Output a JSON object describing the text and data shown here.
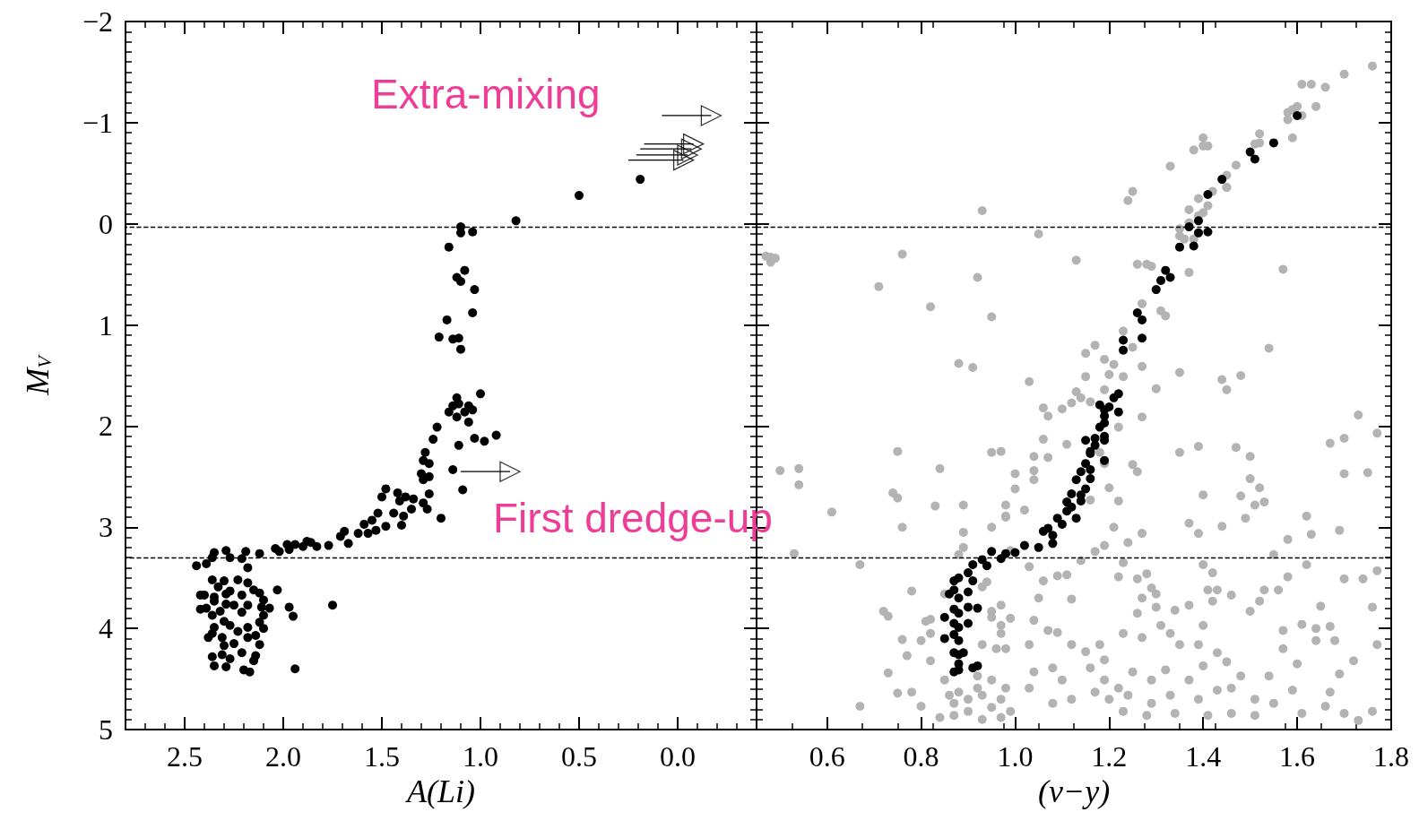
{
  "chart_data": [
    {
      "type": "scatter",
      "xlabel": "A(Li)",
      "ylabel": "M$_{V}$",
      "xlim": [
        2.8,
        -0.4
      ],
      "xticks": [
        {
          "value": 2.5,
          "label": "2.5"
        },
        {
          "value": 2,
          "label": "2.0"
        },
        {
          "value": 1.5,
          "label": "1.5"
        },
        {
          "value": 1,
          "label": "1.0"
        },
        {
          "value": 0.5,
          "label": "0.5"
        },
        {
          "value": 0,
          "label": "0.0"
        }
      ],
      "ylim": [
        5,
        -2
      ],
      "yticks": [
        {
          "value": -2,
          "label": "−2"
        },
        {
          "value": -1,
          "label": "−1"
        },
        0,
        1,
        2,
        3,
        4,
        5
      ],
      "marker": "circle",
      "ref_lines": [
        {
          "axis": "y",
          "value": 0.03,
          "line_style": "dashed",
          "color": "#000000"
        },
        {
          "axis": "y",
          "value": 3.3,
          "line_style": "dashed",
          "color": "#000000"
        }
      ],
      "annotations": [
        "Extra-mixing",
        "First dredge-up"
      ],
      "series": [
        {
          "color": "#000000",
          "x": [
            0.82,
            0.5,
            0.19,
            1.1,
            1.1,
            1.04,
            1.16,
            1.08,
            1.12,
            1.1,
            1.03,
            1.04,
            1.17,
            1.21,
            1.14,
            1.11,
            1.1,
            1.0,
            1.12,
            1.14,
            1.11,
            1.06,
            1.04,
            1.08,
            1.16,
            1.12,
            1.06,
            1.22,
            1.03,
            0.98,
            0.92,
            1.24,
            1.11,
            1.28,
            1.29,
            1.26,
            1.14,
            1.3,
            1.29,
            1.26,
            1.09,
            1.48,
            1.5,
            1.42,
            1.38,
            1.34,
            1.41,
            1.26,
            1.29,
            1.27,
            1.35,
            1.2,
            1.52,
            1.44,
            1.39,
            1.55,
            1.48,
            1.4,
            1.53,
            1.59,
            1.62,
            1.57,
            1.71,
            1.69,
            1.67,
            1.77,
            1.83,
            1.88,
            1.86,
            1.9,
            1.94,
            1.98,
            1.97,
            2.02,
            2.04,
            2.12,
            2.19,
            2.29,
            2.35,
            2.44,
            2.39,
            2.36,
            2.27,
            2.21,
            2.18,
            2.36,
            2.3,
            2.23,
            2.33,
            2.18,
            2.27,
            2.15,
            2.12,
            2.42,
            2.4,
            2.35,
            2.29,
            2.21,
            2.03,
            2.1,
            2.35,
            2.29,
            2.42,
            2.39,
            2.32,
            2.25,
            2.18,
            2.11,
            2.07,
            1.97,
            1.75,
            2.36,
            2.21,
            2.1,
            1.95,
            2.3,
            2.12,
            2.35,
            2.27,
            2.18,
            2.1,
            2.36,
            2.23,
            2.31,
            2.38,
            2.18,
            2.14,
            2.12,
            2.3,
            2.25,
            2.21,
            2.31,
            2.36,
            2.27,
            2.14,
            2.15,
            2.35,
            2.29,
            2.2,
            2.17,
            1.94
          ],
          "values": [
            -0.03,
            -0.28,
            -0.44,
            0.03,
            0.09,
            0.08,
            0.23,
            0.46,
            0.53,
            0.57,
            0.65,
            0.88,
            0.95,
            1.12,
            1.14,
            1.13,
            1.24,
            1.68,
            1.72,
            1.8,
            1.78,
            1.8,
            1.84,
            1.86,
            1.86,
            1.91,
            1.96,
            2.01,
            2.12,
            2.15,
            2.09,
            2.13,
            2.19,
            2.26,
            2.34,
            2.37,
            2.43,
            2.47,
            2.53,
            2.5,
            2.63,
            2.62,
            2.7,
            2.66,
            2.7,
            2.72,
            2.74,
            2.67,
            2.76,
            2.82,
            2.82,
            2.91,
            2.86,
            2.86,
            2.89,
            2.93,
            2.99,
            2.98,
            3.03,
            2.97,
            3.06,
            3.06,
            3.09,
            3.04,
            3.16,
            3.18,
            3.19,
            3.14,
            3.15,
            3.19,
            3.17,
            3.17,
            3.22,
            3.24,
            3.21,
            3.26,
            3.24,
            3.23,
            3.25,
            3.38,
            3.36,
            3.3,
            3.3,
            3.31,
            3.4,
            3.52,
            3.53,
            3.52,
            3.59,
            3.55,
            3.63,
            3.62,
            3.65,
            3.67,
            3.67,
            3.69,
            3.66,
            3.67,
            3.62,
            3.72,
            3.73,
            3.76,
            3.81,
            3.8,
            3.83,
            3.77,
            3.77,
            3.79,
            3.8,
            3.79,
            3.77,
            3.87,
            3.84,
            3.87,
            3.88,
            3.93,
            3.94,
            3.99,
            3.97,
            3.99,
            4.0,
            4.05,
            4.03,
            4.09,
            4.09,
            4.09,
            4.07,
            4.16,
            4.17,
            4.15,
            4.24,
            4.26,
            4.28,
            4.3,
            4.27,
            4.32,
            4.37,
            4.38,
            4.41,
            4.43,
            4.4
          ]
        },
        {
          "color": "#000000",
          "marker": "triangle",
          "x": [
            -0.17,
            -0.08,
            -0.07,
            -0.05,
            -0.03,
            0.85
          ],
          "values": [
            -1.07,
            -0.79,
            -0.74,
            -0.68,
            -0.63,
            2.45
          ],
          "xerrors": [
            [
              -0.17,
              0.08
            ],
            [
              -0.08,
              0.17
            ],
            [
              -0.07,
              0.19
            ],
            [
              -0.05,
              0.21
            ],
            [
              -0.03,
              0.25
            ],
            [
              0.85,
              1.1
            ]
          ]
        }
      ]
    },
    {
      "type": "scatter",
      "xlabel": "(v−y)",
      "xlim": [
        0.45,
        1.8
      ],
      "xticks": [
        0.6,
        0.8,
        {
          "value": 1,
          "label": "1.0"
        },
        1.2,
        1.4,
        1.6,
        1.8
      ],
      "ylim": [
        5,
        -2
      ],
      "yticks": [
        -2,
        -1,
        0,
        1,
        2,
        3,
        4,
        5
      ],
      "tick_labels": "x",
      "marker": "circle",
      "ref_lines": [
        {
          "axis": "y",
          "value": 0.03,
          "line_style": "dashed",
          "color": "#000000"
        },
        {
          "axis": "y",
          "value": 3.3,
          "line_style": "dashed",
          "color": "#000000"
        }
      ],
      "series": [
        {
          "color": "#b3b3b3",
          "x": [
            1.76,
            1.7,
            1.61,
            1.63,
            1.66,
            1.58,
            1.59,
            1.6,
            1.64,
            1.61,
            1.58,
            1.59,
            1.52,
            1.52,
            1.51,
            1.4,
            1.4,
            1.41,
            1.38,
            1.33,
            1.47,
            1.45,
            1.45,
            1.45,
            1.42,
            1.25,
            1.24,
            1.39,
            1.37,
            1.41,
            1.4,
            1.39,
            1.37,
            1.35,
            1.35,
            1.36,
            1.38,
            0.93,
            1.05,
            0.76,
            0.47,
            0.48,
            0.48,
            0.49,
            1.13,
            1.57,
            1.26,
            1.28,
            1.29,
            1.37,
            0.92,
            0.71,
            0.82,
            0.95,
            1.27,
            1.31,
            1.32,
            1.23,
            1.25,
            1.17,
            1.15,
            1.19,
            1.21,
            1.27,
            0.88,
            0.91,
            1.54,
            1.35,
            1.15,
            1.2,
            1.23,
            1.03,
            1.44,
            1.48,
            1.45,
            1.3,
            1.19,
            1.13,
            1.14,
            1.12,
            1.06,
            1.07,
            1.1,
            1.16,
            1.27,
            1.22,
            1.06,
            1.11,
            1.18,
            1.19,
            1.73,
            1.77,
            1.67,
            1.7,
            1.39,
            1.47,
            1.35,
            1.5,
            0.75,
            0.95,
            0.97,
            1.25,
            1.26,
            0.5,
            0.54,
            0.54,
            0.84,
            1.0,
            1.04,
            1.04,
            1.07,
            1.04,
            1.0,
            1.5,
            1.52,
            1.7,
            1.75,
            1.2,
            0.74,
            0.75,
            0.61,
            0.83,
            0.89,
            0.98,
            0.98,
            1.02,
            1.4,
            1.48,
            1.51,
            1.53,
            1.49,
            1.62,
            1.22,
            1.16,
            0.53,
            0.67,
            0.76,
            0.78,
            0.72,
            0.73,
            0.76,
            0.77,
            0.73,
            0.75,
            0.78,
            0.67,
            0.8,
            0.81,
            0.85,
            0.86,
            0.87,
            0.88,
            0.9,
            0.92,
            0.93,
            0.95,
            0.97,
            0.98,
            0.99,
            0.9,
            0.87,
            0.84,
            0.93,
            0.97,
            0.92,
            0.95,
            0.93,
            0.96,
            0.97,
            0.98,
            0.95,
            0.97,
            0.97,
            0.99,
            0.95,
            0.93,
            0.94,
            0.89,
            0.88,
            0.85,
            0.82,
            0.82,
            0.8,
            0.82,
            0.89,
            0.95,
            0.98,
            0.99,
            1.03,
            1.06,
            1.05,
            1.04,
            1.03,
            1.04,
            1.03,
            1.07,
            1.09,
            1.11,
            1.12,
            1.14,
            1.17,
            1.19,
            1.22,
            1.23,
            1.24,
            1.26,
            1.28,
            1.29,
            1.3,
            1.27,
            1.34,
            1.3,
            1.31,
            1.26,
            1.23,
            1.27,
            1.33,
            1.35,
            1.39,
            1.37,
            1.4,
            1.41,
            1.42,
            1.43,
            1.4,
            1.42,
            1.46,
            1.5,
            1.52,
            1.53,
            1.56,
            1.55,
            1.58,
            1.62,
            1.64,
            1.61,
            1.57,
            1.67,
            1.64,
            1.68,
            1.7,
            1.74,
            1.76,
            1.77,
            1.72,
            1.69,
            1.65,
            1.6,
            1.57,
            1.54,
            1.48,
            1.45,
            1.43,
            1.4,
            1.37,
            1.32,
            1.29,
            1.25,
            1.22,
            1.19,
            1.16,
            1.15,
            1.18,
            1.19,
            1.17,
            1.2,
            1.24,
            1.29,
            1.33,
            1.39,
            1.43,
            1.46,
            1.51,
            1.55,
            1.59,
            1.61,
            1.66,
            1.7,
            1.73,
            1.67,
            1.51,
            1.46,
            1.41,
            1.34,
            1.28,
            1.23,
            1.12,
            1.08,
            1.1,
            1.08,
            1.12,
            1.09,
            1.76,
            1.21,
            1.27,
            1.37,
            1.39,
            1.44,
            1.58,
            1.63,
            1.69,
            1.77
          ],
          "values": [
            -1.56,
            -1.48,
            -1.38,
            -1.38,
            -1.35,
            -1.1,
            -1.13,
            -1.16,
            -1.16,
            -1.07,
            -1.03,
            -0.85,
            -0.89,
            -0.8,
            -0.79,
            -0.85,
            -0.77,
            -0.77,
            -0.73,
            -0.57,
            -0.58,
            -0.48,
            -0.36,
            -0.36,
            -0.32,
            -0.32,
            -0.23,
            -0.25,
            -0.14,
            -0.18,
            -0.11,
            -0.08,
            -0.01,
            0.05,
            0.12,
            0.15,
            0.15,
            -0.13,
            0.1,
            0.3,
            0.32,
            0.38,
            0.33,
            0.34,
            0.36,
            0.45,
            0.4,
            0.4,
            0.42,
            0.48,
            0.53,
            0.62,
            0.82,
            0.92,
            0.79,
            0.86,
            0.91,
            1.06,
            1.22,
            1.2,
            1.28,
            1.34,
            1.39,
            1.41,
            1.38,
            1.42,
            1.23,
            1.47,
            1.51,
            1.49,
            1.51,
            1.56,
            1.54,
            1.5,
            1.64,
            1.63,
            1.64,
            1.66,
            1.72,
            1.77,
            1.82,
            1.9,
            1.83,
            1.76,
            1.91,
            2.01,
            2.13,
            2.18,
            2.26,
            2.37,
            1.89,
            2.07,
            2.17,
            2.12,
            2.2,
            2.21,
            2.26,
            2.3,
            2.25,
            2.26,
            2.25,
            2.38,
            2.45,
            2.44,
            2.42,
            2.58,
            2.42,
            2.47,
            2.44,
            2.53,
            2.31,
            2.3,
            2.62,
            2.52,
            2.61,
            2.47,
            2.46,
            2.61,
            2.66,
            2.71,
            2.85,
            2.79,
            2.78,
            2.78,
            2.89,
            2.83,
            2.68,
            2.69,
            2.78,
            2.75,
            2.91,
            2.89,
            2.74,
            2.73,
            3.26,
            3.37,
            3.0,
            3.63,
            3.83,
            3.88,
            4.11,
            4.27,
            4.44,
            4.64,
            4.63,
            4.77,
            4.77,
            3.93,
            4.51,
            4.66,
            4.74,
            4.63,
            4.7,
            4.59,
            4.66,
            4.78,
            4.7,
            4.59,
            4.82,
            4.82,
            4.86,
            4.88,
            4.9,
            4.88,
            4.47,
            4.51,
            4.16,
            4.2,
            4.05,
            4.2,
            3.89,
            3.97,
            3.77,
            3.9,
            3.83,
            3.59,
            3.54,
            3.2,
            3.27,
            3.66,
            3.91,
            4.05,
            4.12,
            4.32,
            3.05,
            3.0,
            2.9,
            3.23,
            3.39,
            3.53,
            3.7,
            3.92,
            4.16,
            4.43,
            4.59,
            4.02,
            3.48,
            3.47,
            3.71,
            3.33,
            3.24,
            3.18,
            3.49,
            3.35,
            3.15,
            3.51,
            3.46,
            3.6,
            3.66,
            3.7,
            3.82,
            3.79,
            3.97,
            3.85,
            4.05,
            4.09,
            4.05,
            4.16,
            4.16,
            3.77,
            3.97,
            3.62,
            3.73,
            3.62,
            3.37,
            3.45,
            3.67,
            3.83,
            3.73,
            3.62,
            3.62,
            3.27,
            3.49,
            3.37,
            4.0,
            3.96,
            4.02,
            3.98,
            4.12,
            4.12,
            3.51,
            3.51,
            3.79,
            4.16,
            4.32,
            4.45,
            3.78,
            4.35,
            4.2,
            4.47,
            4.47,
            4.33,
            4.24,
            4.37,
            4.51,
            4.41,
            4.51,
            4.43,
            4.59,
            4.51,
            4.39,
            4.23,
            4.16,
            4.31,
            4.63,
            4.7,
            4.66,
            4.74,
            4.66,
            4.7,
            4.61,
            4.59,
            4.7,
            4.74,
            4.61,
            4.84,
            4.77,
            4.84,
            4.91,
            4.63,
            4.86,
            4.84,
            4.86,
            4.84,
            4.86,
            4.82,
            4.7,
            4.74,
            4.51,
            4.39,
            4.16,
            4.04,
            4.82,
            3.0,
            3.06,
            2.96,
            3.06,
            2.99,
            3.12,
            3.07,
            3.03,
            3.43
          ]
        },
        {
          "color": "#000000",
          "x": [
            1.6,
            1.55,
            1.5,
            1.51,
            1.44,
            1.41,
            1.39,
            1.37,
            1.39,
            1.41,
            1.35,
            1.38,
            1.32,
            1.33,
            1.31,
            1.3,
            1.26,
            1.27,
            1.27,
            1.23,
            1.23,
            1.22,
            1.21,
            1.18,
            1.2,
            1.19,
            1.22,
            1.19,
            1.19,
            1.18,
            1.19,
            1.15,
            1.17,
            1.19,
            1.17,
            1.16,
            1.16,
            1.19,
            1.15,
            1.16,
            1.14,
            1.16,
            1.13,
            1.15,
            1.14,
            1.12,
            1.11,
            1.14,
            1.12,
            1.11,
            1.13,
            1.09,
            1.1,
            1.07,
            1.06,
            1.08,
            1.08,
            1.05,
            1.02,
            1.0,
            0.98,
            0.97,
            0.95,
            0.93,
            0.91,
            0.94,
            0.9,
            0.88,
            0.91,
            0.87,
            0.86,
            0.87,
            0.88,
            0.9,
            0.85,
            0.87,
            0.88,
            0.9,
            0.92,
            0.87,
            0.88,
            0.9,
            0.85,
            0.87,
            0.88,
            0.87,
            0.88,
            0.89,
            0.88,
            0.91,
            0.92,
            0.87,
            0.88
          ],
          "values": [
            -1.07,
            -0.8,
            -0.71,
            -0.64,
            -0.44,
            -0.29,
            -0.03,
            0.03,
            0.09,
            0.08,
            0.23,
            0.22,
            0.46,
            0.53,
            0.56,
            0.65,
            0.88,
            0.95,
            1.13,
            1.15,
            1.25,
            1.68,
            1.72,
            1.79,
            1.81,
            1.84,
            1.86,
            1.9,
            1.97,
            2.01,
            2.1,
            2.14,
            2.12,
            2.14,
            2.19,
            2.25,
            2.27,
            2.34,
            2.37,
            2.43,
            2.45,
            2.52,
            2.53,
            2.62,
            2.68,
            2.67,
            2.75,
            2.74,
            2.8,
            2.84,
            2.91,
            2.91,
            2.97,
            3.01,
            3.04,
            3.08,
            3.16,
            3.2,
            3.18,
            3.25,
            3.26,
            3.31,
            3.24,
            3.32,
            3.37,
            3.38,
            3.45,
            3.5,
            3.53,
            3.53,
            3.66,
            3.62,
            3.7,
            3.64,
            3.89,
            3.81,
            3.85,
            3.79,
            3.8,
            3.95,
            3.99,
            3.95,
            4.1,
            4.06,
            4.12,
            4.24,
            4.26,
            4.24,
            4.35,
            4.39,
            4.37,
            4.43,
            4.41
          ]
        }
      ]
    }
  ]
}
